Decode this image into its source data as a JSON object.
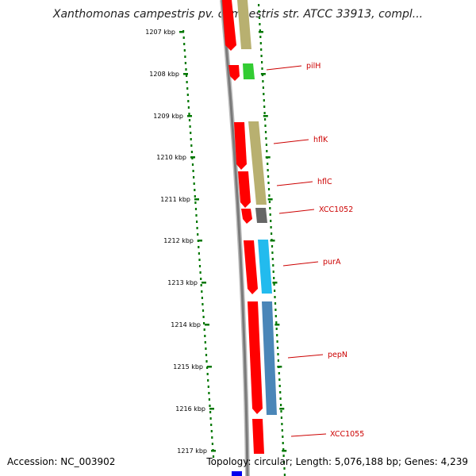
{
  "header": {
    "title": "Xanthomonas campestris pv. campestris str. ATCC 33913, compl..."
  },
  "footer": {
    "accession": "Accession: NC_003902",
    "summary": "Topology: circular; Length: 5,076,188 bp; Genes: 4,239"
  },
  "ruler": {
    "ticks": [
      {
        "label": "1207 kbp"
      },
      {
        "label": "1208 kbp"
      },
      {
        "label": "1209 kbp"
      },
      {
        "label": "1210 kbp"
      },
      {
        "label": "1211 kbp"
      },
      {
        "label": "1212 kbp"
      },
      {
        "label": "1213 kbp"
      },
      {
        "label": "1214 kbp"
      },
      {
        "label": "1215 kbp"
      },
      {
        "label": "1216 kbp"
      },
      {
        "label": "1217 kbp"
      }
    ]
  },
  "genes": [
    {
      "name": "pilH"
    },
    {
      "name": "hflK"
    },
    {
      "name": "hflC"
    },
    {
      "name": "XCC1052"
    },
    {
      "name": "purA"
    },
    {
      "name": "pepN"
    },
    {
      "name": "XCC1055"
    }
  ],
  "colors": {
    "cds": "#ff0000",
    "khaki": "#b8b070",
    "green": "#33cc33",
    "gray": "#666666",
    "cyan": "#22bbee",
    "steel": "#4a86b8",
    "blue": "#0000ee",
    "backbone": "#888888",
    "ticks": "#007700",
    "label": "#cc0000"
  }
}
